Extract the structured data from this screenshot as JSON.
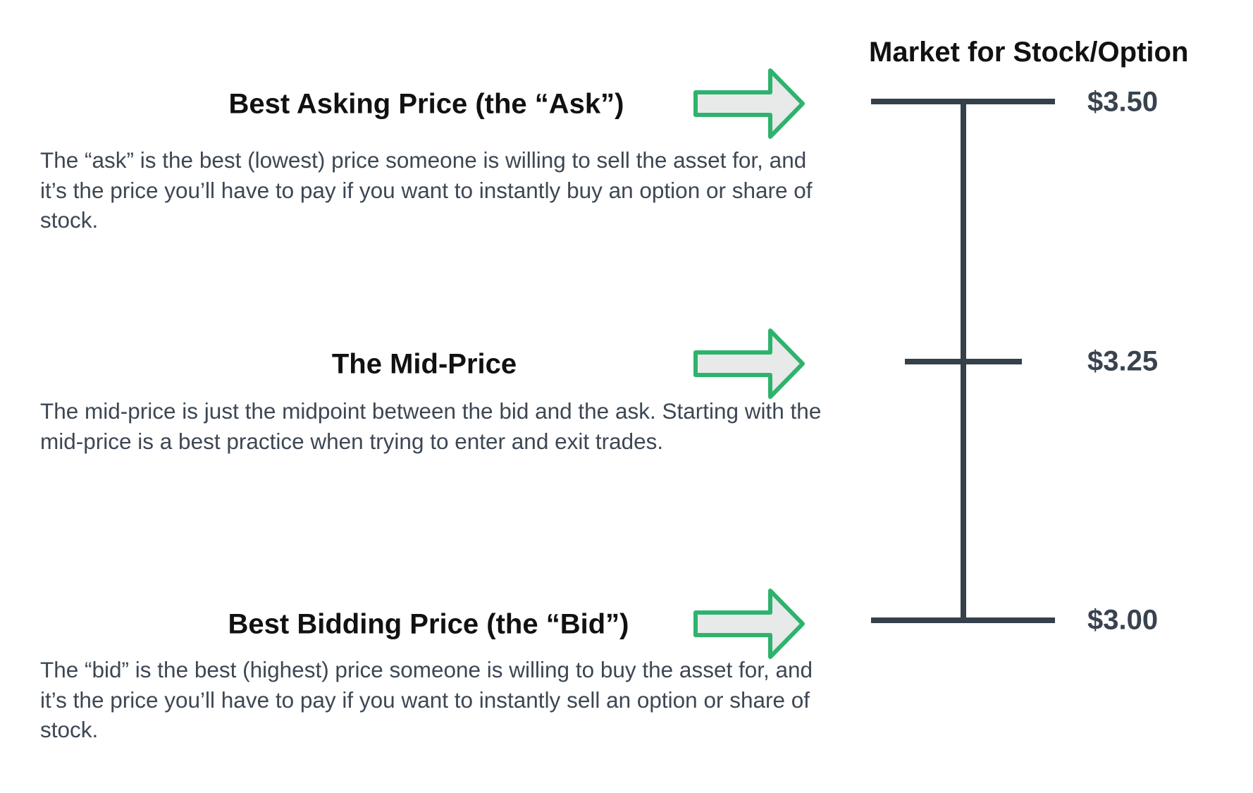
{
  "title": "Market for Stock/Option",
  "colors": {
    "arrow_stroke": "#2eb36d",
    "arrow_fill": "#e8e9e9",
    "scale_line": "#36404a"
  },
  "sections": [
    {
      "heading": "Best Asking Price (the “Ask”)",
      "body": "The “ask” is the best (lowest) price someone is willing to sell the asset for, and it’s the price you’ll have to pay if you want to instantly buy an option or share of stock.",
      "price": "$3.50",
      "icon": "right-arrow-icon"
    },
    {
      "heading": "The Mid-Price",
      "body": "The mid-price is just the midpoint between the bid and the ask. Starting with the mid-price is a best practice when trying to enter and exit trades.",
      "price": "$3.25",
      "icon": "right-arrow-icon"
    },
    {
      "heading": "Best Bidding Price (the “Bid”)",
      "body": "The “bid” is the best (highest) price someone is willing to buy the asset for, and it’s the price you’ll have to pay if you want to instantly sell an option or share of stock.",
      "price": "$3.00",
      "icon": "right-arrow-icon"
    }
  ]
}
